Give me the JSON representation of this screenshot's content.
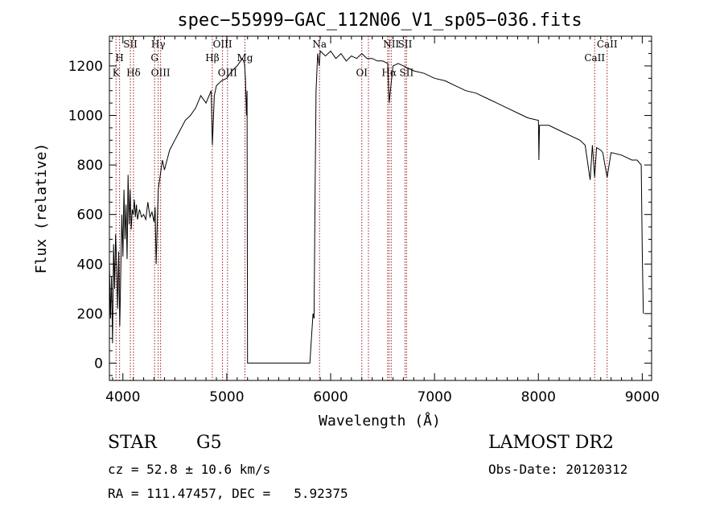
{
  "chart_data": {
    "type": "line",
    "title": "spec−55999−GAC_112N06_V1_sp05−036.fits",
    "xlabel": "Wavelength (Å)",
    "ylabel": "Flux (relative)",
    "xlim": [
      3870,
      9090
    ],
    "ylim": [
      -70,
      1320
    ],
    "xticks": [
      4000,
      5000,
      6000,
      7000,
      8000,
      9000
    ],
    "yticks": [
      0,
      200,
      400,
      600,
      800,
      1000,
      1200
    ],
    "grid": false,
    "series": [
      {
        "x": [
          3870,
          3880,
          3890,
          3900,
          3910,
          3920,
          3930,
          3940,
          3950,
          3960,
          3970,
          3980,
          3990,
          4000,
          4010,
          4020,
          4030,
          4040,
          4050,
          4060,
          4070,
          4080,
          4090,
          4100,
          4110,
          4120,
          4130,
          4140,
          4160,
          4180,
          4200,
          4220,
          4240,
          4260,
          4280,
          4300,
          4310,
          4320,
          4340,
          4360,
          4380,
          4400,
          4450,
          4500,
          4550,
          4600,
          4650,
          4700,
          4750,
          4800,
          4850,
          4861,
          4880,
          4900,
          4950,
          5000,
          5050,
          5100,
          5150,
          5170,
          5180,
          5190,
          5195,
          5200,
          5800,
          5830,
          5840,
          5850,
          5860,
          5875,
          5890,
          5900,
          5950,
          6000,
          6050,
          6100,
          6150,
          6200,
          6250,
          6300,
          6350,
          6400,
          6450,
          6500,
          6550,
          6563,
          6600,
          6650,
          6700,
          6750,
          6800,
          6900,
          7000,
          7100,
          7200,
          7300,
          7400,
          7500,
          7600,
          7700,
          7800,
          7900,
          8000,
          8005,
          8010,
          8100,
          8200,
          8300,
          8400,
          8450,
          8498,
          8520,
          8542,
          8560,
          8600,
          8620,
          8662,
          8700,
          8800,
          8900,
          8950,
          8990,
          9000,
          9010
        ],
        "y": [
          400,
          180,
          350,
          80,
          480,
          300,
          520,
          400,
          220,
          450,
          150,
          380,
          600,
          430,
          700,
          500,
          640,
          420,
          760,
          560,
          700,
          540,
          620,
          600,
          660,
          590,
          640,
          580,
          620,
          590,
          600,
          580,
          650,
          590,
          610,
          570,
          630,
          400,
          700,
          760,
          820,
          780,
          860,
          900,
          940,
          980,
          1000,
          1030,
          1080,
          1050,
          1100,
          880,
          1080,
          1120,
          1140,
          1150,
          1180,
          1200,
          1230,
          1210,
          1150,
          1000,
          1100,
          0,
          0,
          200,
          180,
          700,
          1100,
          1250,
          1200,
          1260,
          1240,
          1260,
          1230,
          1250,
          1220,
          1240,
          1230,
          1250,
          1230,
          1230,
          1220,
          1220,
          1210,
          1050,
          1200,
          1210,
          1200,
          1190,
          1180,
          1170,
          1150,
          1140,
          1120,
          1100,
          1090,
          1070,
          1050,
          1030,
          1010,
          990,
          980,
          820,
          960,
          960,
          940,
          920,
          900,
          880,
          740,
          880,
          750,
          870,
          860,
          850,
          750,
          850,
          840,
          820,
          820,
          800,
          450,
          200
        ]
      }
    ],
    "lines": [
      {
        "name": "K",
        "x": 3934
      },
      {
        "name": "H",
        "x": 3968
      },
      {
        "name": "SII",
        "x": 4072
      },
      {
        "name": "Hδ",
        "x": 4102
      },
      {
        "name": "Hγ",
        "x": 4340
      },
      {
        "name": "G",
        "x": 4305
      },
      {
        "name": "OIII",
        "x": 4363
      },
      {
        "name": "Hβ",
        "x": 4861
      },
      {
        "name": "OIII",
        "x": 4959
      },
      {
        "name": "OIII",
        "x": 5007
      },
      {
        "name": "Mg",
        "x": 5175
      },
      {
        "name": "Na",
        "x": 5893
      },
      {
        "name": "OI",
        "x": 6300
      },
      {
        "name": "OI",
        "x": 6364
      },
      {
        "name": "NII",
        "x": 6548
      },
      {
        "name": "Hα",
        "x": 6563
      },
      {
        "name": "NII",
        "x": 6583
      },
      {
        "name": "SII",
        "x": 6716
      },
      {
        "name": "SII",
        "x": 6731
      },
      {
        "name": "CaII",
        "x": 8542
      },
      {
        "name": "CaII",
        "x": 8662
      }
    ],
    "line_labels": [
      {
        "text": "H",
        "x": 3968,
        "y": 1220
      },
      {
        "text": "K",
        "x": 3934,
        "y": 1160
      },
      {
        "text": "SII",
        "x": 4072,
        "y": 1275
      },
      {
        "text": "Hδ",
        "x": 4102,
        "y": 1160
      },
      {
        "text": "Hγ",
        "x": 4340,
        "y": 1275
      },
      {
        "text": "G",
        "x": 4305,
        "y": 1220
      },
      {
        "text": "OIII",
        "x": 4363,
        "y": 1160
      },
      {
        "text": "OIII",
        "x": 4959,
        "y": 1275
      },
      {
        "text": "Hβ",
        "x": 4861,
        "y": 1220
      },
      {
        "text": "OIII",
        "x": 5007,
        "y": 1160
      },
      {
        "text": "Mg",
        "x": 5175,
        "y": 1220
      },
      {
        "text": "Na",
        "x": 5893,
        "y": 1275
      },
      {
        "text": "OI",
        "x": 6300,
        "y": 1160
      },
      {
        "text": "NII",
        "x": 6583,
        "y": 1275
      },
      {
        "text": "Hα",
        "x": 6563,
        "y": 1160
      },
      {
        "text": "SII",
        "x": 6716,
        "y": 1275
      },
      {
        "text": "SII",
        "x": 6731,
        "y": 1160
      },
      {
        "text": "CaII",
        "x": 8662,
        "y": 1275
      },
      {
        "text": "CaII",
        "x": 8542,
        "y": 1220
      }
    ],
    "colors": {
      "line": "#000000",
      "markers": "#9b1b1b",
      "axes": "#000000"
    }
  },
  "info": {
    "class": "STAR",
    "subclass": "G5",
    "survey": "LAMOST DR2",
    "cz": "cz = 52.8 ± 10.6 km/s",
    "obsdate": "Obs-Date: 20120312",
    "radec": "RA = 111.47457, DEC =   5.92375"
  }
}
